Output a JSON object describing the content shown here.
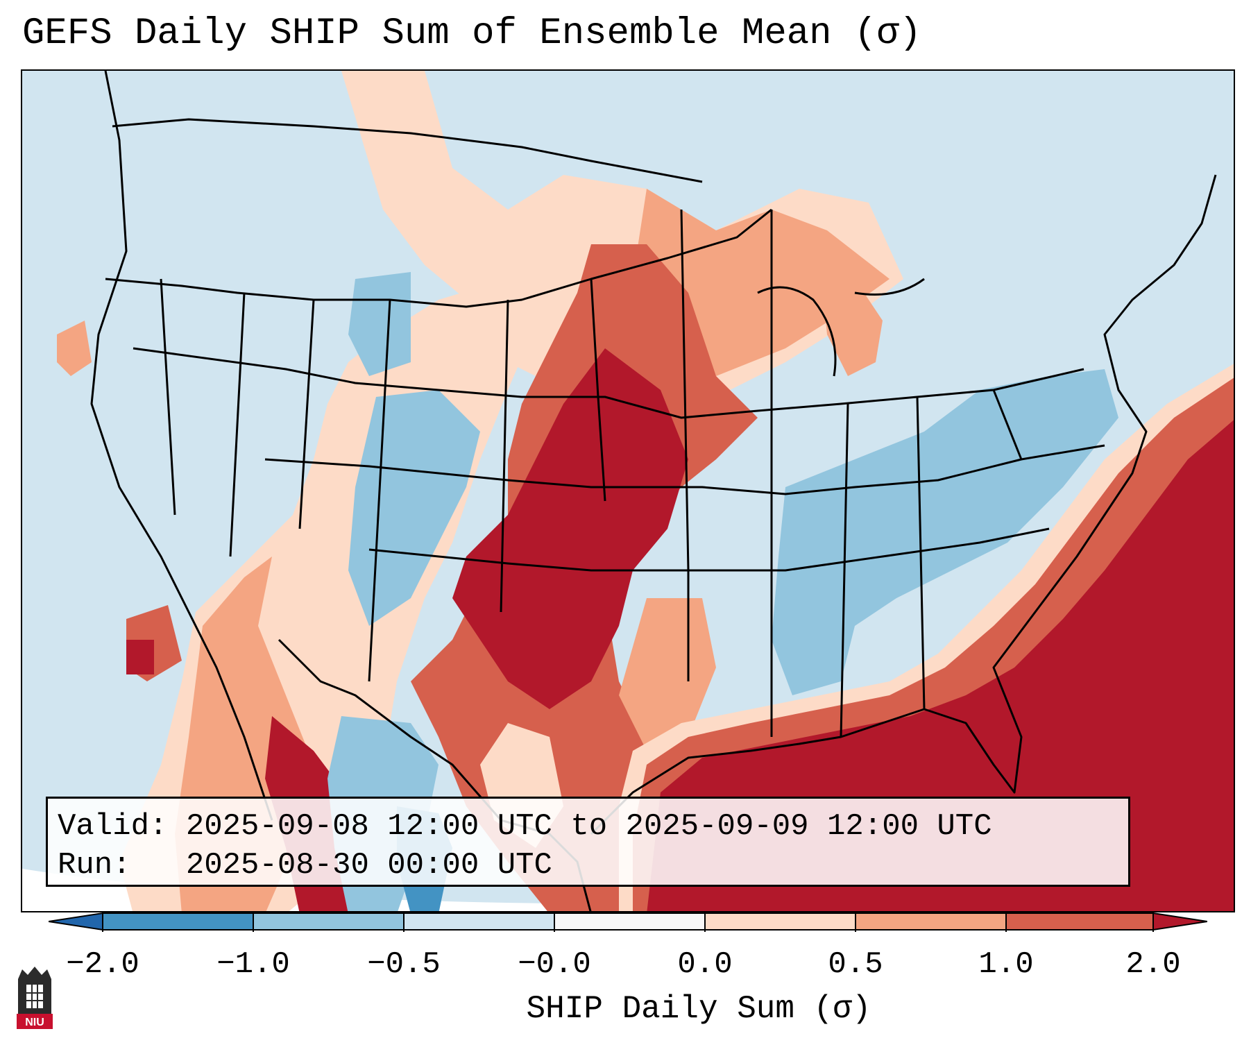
{
  "title": "GEFS Daily SHIP Sum of Ensemble Mean (σ)",
  "info": {
    "valid_line": "Valid: 2025-09-08 12:00 UTC to 2025-09-09 12:00 UTC",
    "run_line": "Run:   2025-08-30 00:00 UTC"
  },
  "colorbar": {
    "label": "SHIP Daily Sum (σ)",
    "ticks": [
      "−2.0",
      "−1.0",
      "−0.5",
      "−0.0",
      "0.0",
      "0.5",
      "1.0",
      "2.0"
    ],
    "colors": [
      "#4393c3",
      "#92c5de",
      "#d1e5f0",
      "#f7f7f7",
      "#fddbc7",
      "#f4a582",
      "#d6604d",
      "#b2182b"
    ],
    "under_color": "#2166ac",
    "over_color": "#b2182b"
  },
  "logo": {
    "text": "NIU"
  }
}
